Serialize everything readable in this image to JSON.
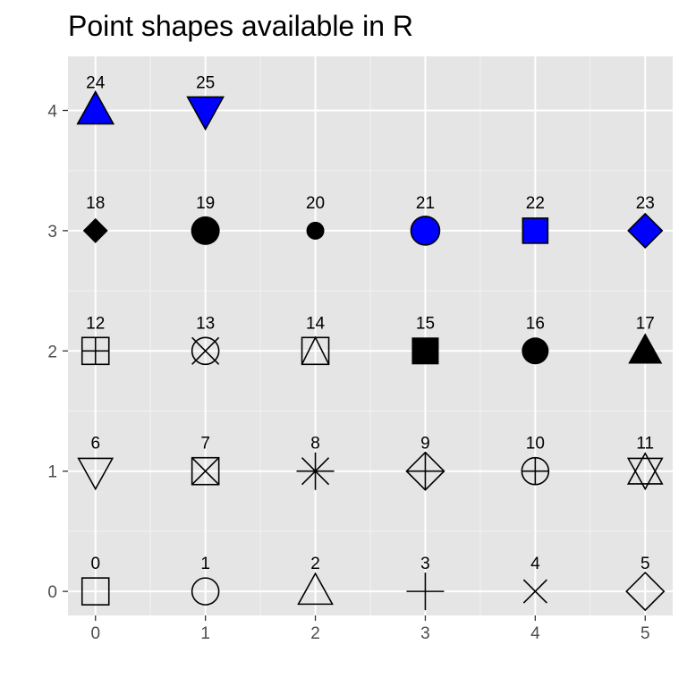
{
  "chart_data": {
    "type": "scatter",
    "title": "Point shapes available in R",
    "xlabel": "",
    "ylabel": "",
    "xlim": [
      -0.25,
      5.25
    ],
    "ylim": [
      -0.2,
      4.45
    ],
    "x_ticks": [
      "0",
      "1",
      "2",
      "3",
      "4",
      "5"
    ],
    "y_ticks": [
      "0",
      "1",
      "2",
      "3",
      "4"
    ],
    "grid": true,
    "fill_color": "#0000ff",
    "panel_color": "#e5e5e5",
    "points": [
      {
        "x": 0,
        "y": 0,
        "shape": 0,
        "label": "0"
      },
      {
        "x": 1,
        "y": 0,
        "shape": 1,
        "label": "1"
      },
      {
        "x": 2,
        "y": 0,
        "shape": 2,
        "label": "2"
      },
      {
        "x": 3,
        "y": 0,
        "shape": 3,
        "label": "3"
      },
      {
        "x": 4,
        "y": 0,
        "shape": 4,
        "label": "4"
      },
      {
        "x": 5,
        "y": 0,
        "shape": 5,
        "label": "5"
      },
      {
        "x": 0,
        "y": 1,
        "shape": 6,
        "label": "6"
      },
      {
        "x": 1,
        "y": 1,
        "shape": 7,
        "label": "7"
      },
      {
        "x": 2,
        "y": 1,
        "shape": 8,
        "label": "8"
      },
      {
        "x": 3,
        "y": 1,
        "shape": 9,
        "label": "9"
      },
      {
        "x": 4,
        "y": 1,
        "shape": 10,
        "label": "10"
      },
      {
        "x": 5,
        "y": 1,
        "shape": 11,
        "label": "11"
      },
      {
        "x": 0,
        "y": 2,
        "shape": 12,
        "label": "12"
      },
      {
        "x": 1,
        "y": 2,
        "shape": 13,
        "label": "13"
      },
      {
        "x": 2,
        "y": 2,
        "shape": 14,
        "label": "14"
      },
      {
        "x": 3,
        "y": 2,
        "shape": 15,
        "label": "15"
      },
      {
        "x": 4,
        "y": 2,
        "shape": 16,
        "label": "16"
      },
      {
        "x": 5,
        "y": 2,
        "shape": 17,
        "label": "17"
      },
      {
        "x": 0,
        "y": 3,
        "shape": 18,
        "label": "18"
      },
      {
        "x": 1,
        "y": 3,
        "shape": 19,
        "label": "19"
      },
      {
        "x": 2,
        "y": 3,
        "shape": 20,
        "label": "20"
      },
      {
        "x": 3,
        "y": 3,
        "shape": 21,
        "label": "21"
      },
      {
        "x": 4,
        "y": 3,
        "shape": 22,
        "label": "22"
      },
      {
        "x": 5,
        "y": 3,
        "shape": 23,
        "label": "23"
      },
      {
        "x": 0,
        "y": 4,
        "shape": 24,
        "label": "24"
      },
      {
        "x": 1,
        "y": 4,
        "shape": 25,
        "label": "25"
      }
    ]
  }
}
